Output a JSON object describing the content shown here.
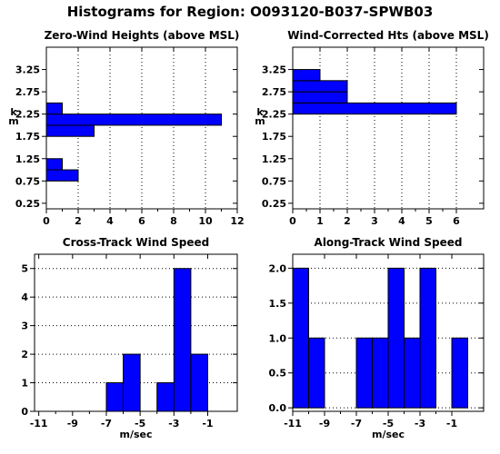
{
  "page": {
    "title": "Histograms for Region:  O093120-B037-SPWB03"
  },
  "colors": {
    "bar": "#0000ff",
    "outline": "#000000",
    "grid": "#000000"
  },
  "chart_data": [
    {
      "id": "zero-wind",
      "type": "bar",
      "orientation": "horizontal",
      "title": "Zero-Wind Heights (above MSL)",
      "xlabel": "",
      "ylabel": "k\nm",
      "xlim": [
        0,
        12
      ],
      "ylim": [
        0.125,
        3.75
      ],
      "xticks": [
        0,
        2,
        4,
        6,
        8,
        10,
        12
      ],
      "yticks": [
        0.25,
        0.75,
        1.25,
        1.75,
        2.25,
        2.75,
        3.25
      ],
      "ytick_labels": [
        "0.25",
        "0.75",
        "1.25",
        "1.75",
        "2.25",
        "2.75",
        "3.25"
      ],
      "grid": "vertical-dotted",
      "bins": [
        {
          "from": 0.75,
          "to": 1.0,
          "value": 2
        },
        {
          "from": 1.0,
          "to": 1.25,
          "value": 1
        },
        {
          "from": 1.75,
          "to": 2.0,
          "value": 3
        },
        {
          "from": 2.0,
          "to": 2.25,
          "value": 11
        },
        {
          "from": 2.25,
          "to": 2.5,
          "value": 1
        }
      ]
    },
    {
      "id": "wind-corrected",
      "type": "bar",
      "orientation": "horizontal",
      "title": "Wind-Corrected Hts (above MSL)",
      "xlabel": "",
      "ylabel": "k\nm",
      "xlim": [
        0,
        7
      ],
      "ylim": [
        0.125,
        3.75
      ],
      "xticks": [
        0,
        1,
        2,
        3,
        4,
        5,
        6
      ],
      "yticks": [
        0.25,
        0.75,
        1.25,
        1.75,
        2.25,
        2.75,
        3.25
      ],
      "ytick_labels": [
        "0.25",
        "0.75",
        "1.25",
        "1.75",
        "2.25",
        "2.75",
        "3.25"
      ],
      "grid": "vertical-dotted",
      "bins": [
        {
          "from": 2.25,
          "to": 2.5,
          "value": 6
        },
        {
          "from": 2.5,
          "to": 2.75,
          "value": 2
        },
        {
          "from": 2.75,
          "to": 3.0,
          "value": 2
        },
        {
          "from": 3.0,
          "to": 3.25,
          "value": 1
        }
      ]
    },
    {
      "id": "cross-track",
      "type": "bar",
      "orientation": "vertical",
      "title": "Cross-Track Wind Speed",
      "xlabel": "m/sec",
      "ylabel": "",
      "xlim": [
        -11.25,
        0.75
      ],
      "ylim": [
        0,
        5.5
      ],
      "xticks": [
        -11,
        -9,
        -7,
        -5,
        -3,
        -1
      ],
      "yticks": [
        0,
        1,
        2,
        3,
        4,
        5
      ],
      "ytick_labels": [
        "0",
        "1",
        "2",
        "3",
        "4",
        "5"
      ],
      "grid": "horizontal-dotted",
      "bins": [
        {
          "from": -7,
          "to": -6,
          "value": 1
        },
        {
          "from": -6,
          "to": -5,
          "value": 2
        },
        {
          "from": -4,
          "to": -3,
          "value": 1
        },
        {
          "from": -3,
          "to": -2,
          "value": 5
        },
        {
          "from": -2,
          "to": -1,
          "value": 2
        }
      ]
    },
    {
      "id": "along-track",
      "type": "bar",
      "orientation": "vertical",
      "title": "Along-Track Wind Speed",
      "xlabel": "m/sec",
      "ylabel": "",
      "xlim": [
        -11,
        1
      ],
      "ylim": [
        -0.05,
        2.2
      ],
      "xticks": [
        -11,
        -9,
        -7,
        -5,
        -3,
        -1
      ],
      "yticks": [
        0,
        0.5,
        1,
        1.5,
        2
      ],
      "ytick_labels": [
        "0.0",
        "0.5",
        "1.0",
        "1.5",
        "2.0"
      ],
      "grid": "horizontal-dotted",
      "bins": [
        {
          "from": -11,
          "to": -10,
          "value": 2
        },
        {
          "from": -10,
          "to": -9,
          "value": 1
        },
        {
          "from": -7,
          "to": -6,
          "value": 1
        },
        {
          "from": -6,
          "to": -5,
          "value": 1
        },
        {
          "from": -5,
          "to": -4,
          "value": 2
        },
        {
          "from": -4,
          "to": -3,
          "value": 1
        },
        {
          "from": -3,
          "to": -2,
          "value": 2
        },
        {
          "from": -1,
          "to": 0,
          "value": 1
        }
      ]
    }
  ]
}
